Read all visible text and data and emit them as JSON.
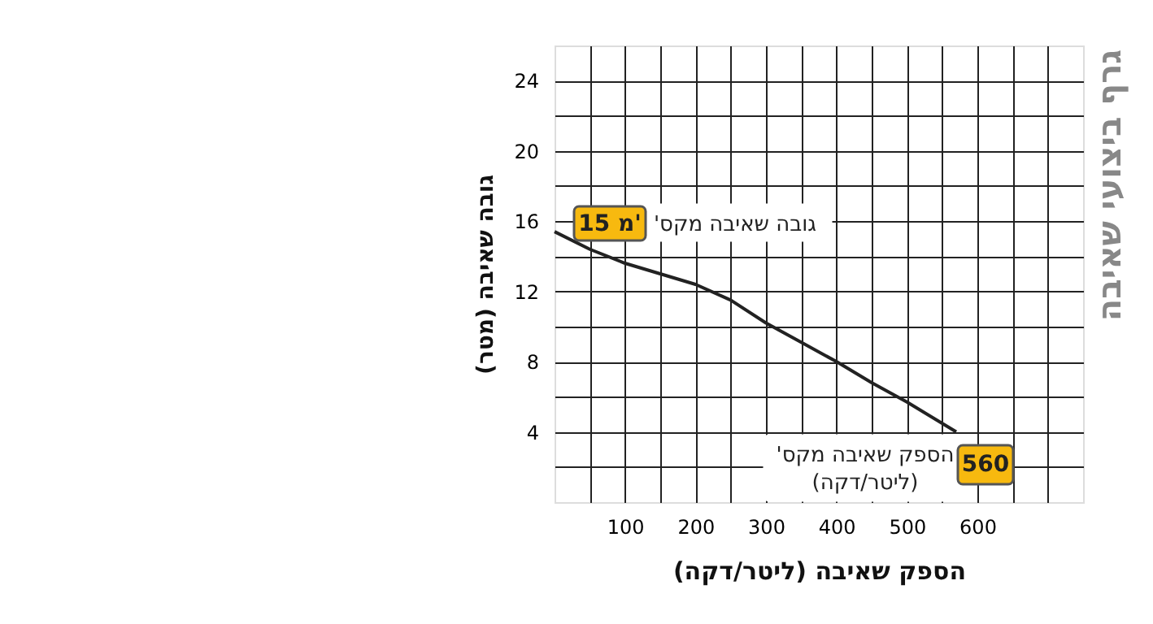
{
  "chart_data": {
    "type": "line",
    "title": "גרף ביצועי שאיבה",
    "xlabel": "הספק שאיבה (ליטר/דקה)",
    "ylabel": "גובה שאיבה (מטר)",
    "x": [
      0,
      50,
      100,
      150,
      200,
      250,
      300,
      350,
      400,
      450,
      500,
      570
    ],
    "series": [
      {
        "color": "#222222",
        "values": [
          15.4,
          14.4,
          13.6,
          13.0,
          12.4,
          11.5,
          10.2,
          9.1,
          8.0,
          6.8,
          5.7,
          4.0
        ]
      }
    ],
    "xlim": [
      0,
      750
    ],
    "xticks": [
      {
        "value": 50,
        "label": null
      },
      100,
      {
        "value": 150,
        "label": null
      },
      200,
      {
        "value": 250,
        "label": null
      },
      300,
      {
        "value": 350,
        "label": null
      },
      400,
      {
        "value": 450,
        "label": null
      },
      500,
      {
        "value": 550,
        "label": null
      },
      600,
      {
        "value": 650,
        "label": null
      },
      {
        "value": 700,
        "label": null
      }
    ],
    "ylim": [
      0,
      26
    ],
    "yticks": [
      {
        "value": 2,
        "label": null
      },
      4,
      {
        "value": 6,
        "label": null
      },
      8,
      {
        "value": 10,
        "label": null
      },
      12,
      {
        "value": 14,
        "label": null
      },
      16,
      {
        "value": 18,
        "label": null
      },
      20,
      {
        "value": 22,
        "label": null
      },
      24
    ],
    "grid": true,
    "marker": "none",
    "line_style": "solid",
    "annotations": [
      "גובה שאיבה מקס'",
      "15 מ'",
      "הספק שאיבה מקס'\n(ליטר/דקה)",
      "560"
    ]
  }
}
